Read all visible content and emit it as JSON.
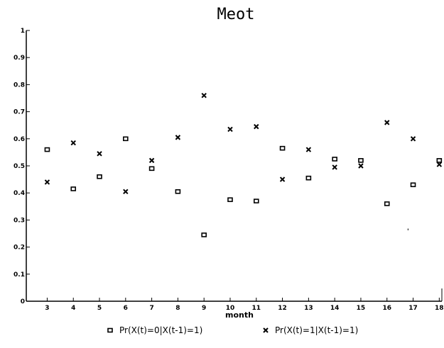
{
  "chart_data": {
    "type": "scatter",
    "title": "Meot",
    "xlabel": "month",
    "ylabel": "",
    "xlim": [
      2.2,
      18.1
    ],
    "ylim": [
      0,
      1
    ],
    "x_ticks": [
      3,
      4,
      5,
      6,
      7,
      8,
      9,
      10,
      11,
      12,
      13,
      14,
      15,
      16,
      17,
      18
    ],
    "x_tick_labels": [
      "3",
      "4",
      "5",
      "6",
      "7",
      "8",
      "9",
      "10",
      "11",
      "12",
      "13",
      "14",
      "15",
      "16",
      "17",
      "18"
    ],
    "y_ticks": [
      0,
      0.1,
      0.2,
      0.3,
      0.4,
      0.5,
      0.6,
      0.7,
      0.8,
      0.9,
      1
    ],
    "y_tick_labels": [
      "0",
      "0.1",
      "0.2",
      "0.3",
      "0.4",
      "0.5",
      "0.6",
      "0.7",
      "0.8",
      "0.9",
      "1"
    ],
    "grid": false,
    "legend_position": "bottom",
    "series": [
      {
        "name": "Pr(X(t)=0|X(t-1)=1)",
        "marker": "square",
        "x": [
          3,
          4,
          5,
          6,
          7,
          8,
          9,
          10,
          11,
          12,
          13,
          14,
          15,
          16,
          17,
          18
        ],
        "y": [
          0.56,
          0.415,
          0.46,
          0.6,
          0.49,
          0.405,
          0.245,
          0.375,
          0.37,
          0.565,
          0.455,
          0.525,
          0.52,
          0.36,
          0.43,
          0.52
        ]
      },
      {
        "name": "Pr(X(t)=1|X(t-1)=1)",
        "marker": "x",
        "x": [
          3,
          4,
          5,
          6,
          7,
          8,
          9,
          10,
          11,
          12,
          13,
          14,
          15,
          16,
          17,
          18
        ],
        "y": [
          0.44,
          0.585,
          0.545,
          0.405,
          0.52,
          0.605,
          0.76,
          0.635,
          0.645,
          0.45,
          0.56,
          0.495,
          0.5,
          0.66,
          0.6,
          0.505
        ]
      }
    ],
    "annotations": [
      "'"
    ]
  }
}
